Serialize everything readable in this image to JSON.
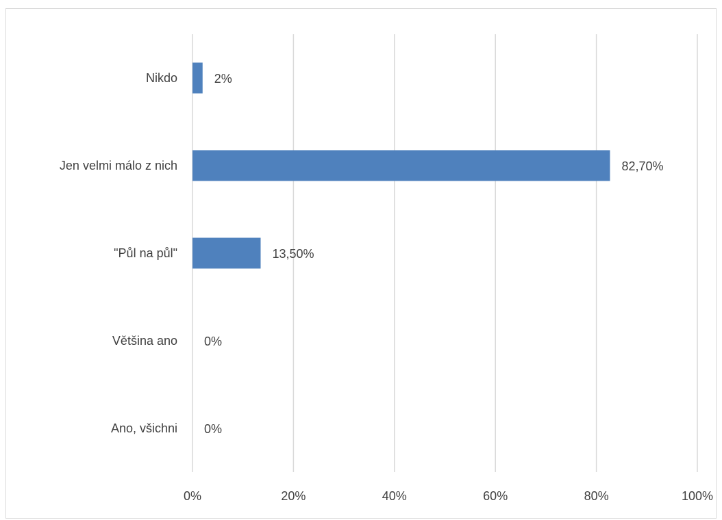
{
  "chart_data": {
    "type": "bar",
    "orientation": "horizontal",
    "categories": [
      "Nikdo",
      "Jen velmi málo z nich",
      "\"Půl na půl\"",
      "Většina ano",
      "Ano, všichni"
    ],
    "values": [
      2,
      82.7,
      13.5,
      0,
      0
    ],
    "data_labels": [
      "2%",
      "82,70%",
      "13,50%",
      "0%",
      "0%"
    ],
    "x_ticks": [
      "0%",
      "20%",
      "40%",
      "60%",
      "80%",
      "100%"
    ],
    "xlim": [
      0,
      100
    ],
    "grid": true,
    "bar_color": "#4f81bd",
    "grid_color": "#d9d9d9",
    "text_color": "#404040",
    "title": "",
    "xlabel": "",
    "ylabel": ""
  }
}
